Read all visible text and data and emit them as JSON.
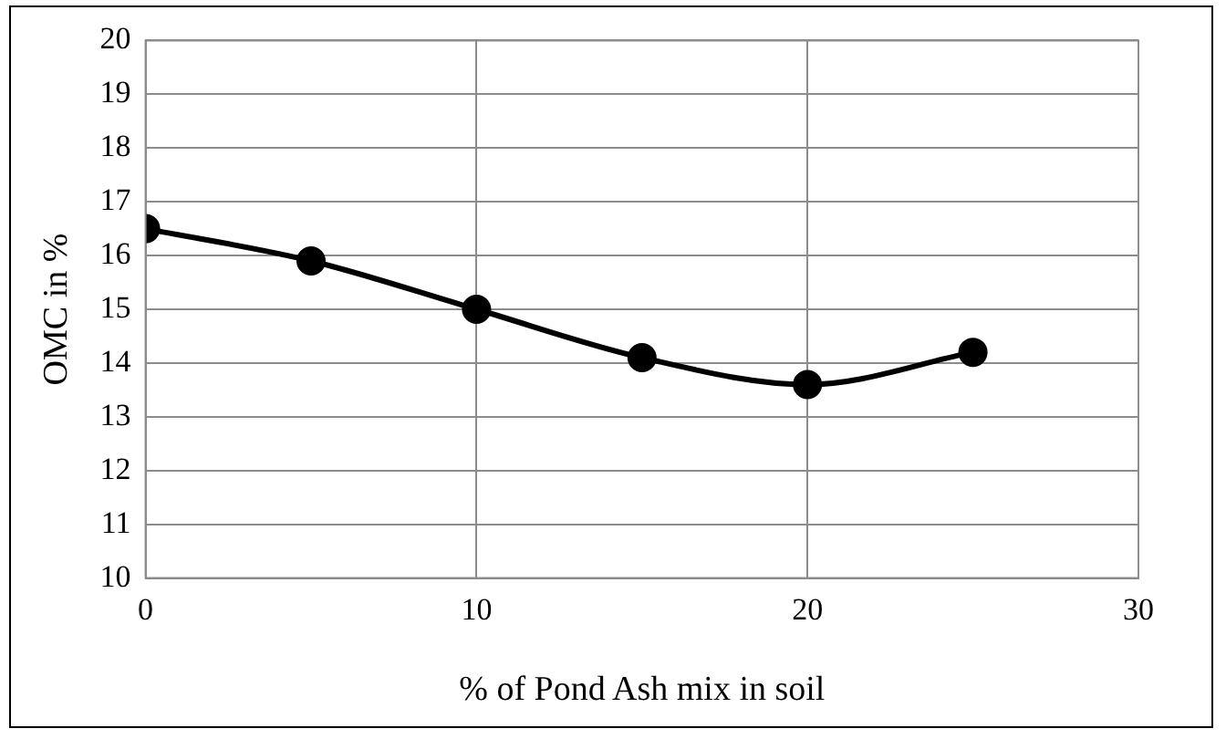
{
  "chart_data": {
    "type": "line",
    "xlabel": "% of Pond Ash mix in soil",
    "ylabel": "OMC in %",
    "x": [
      0,
      5,
      10,
      15,
      20,
      25
    ],
    "series": [
      {
        "color": "#000000",
        "values": [
          16.5,
          15.9,
          15.0,
          14.1,
          13.6,
          14.2
        ]
      }
    ],
    "xlim": [
      0,
      30
    ],
    "xticks": [
      0,
      10,
      20,
      30
    ],
    "ylim": [
      10,
      20
    ],
    "yticks": [
      10,
      11,
      12,
      13,
      14,
      15,
      16,
      17,
      18,
      19,
      20
    ],
    "grid": true,
    "legend": false,
    "marker": "circle",
    "line_style": "solid"
  }
}
